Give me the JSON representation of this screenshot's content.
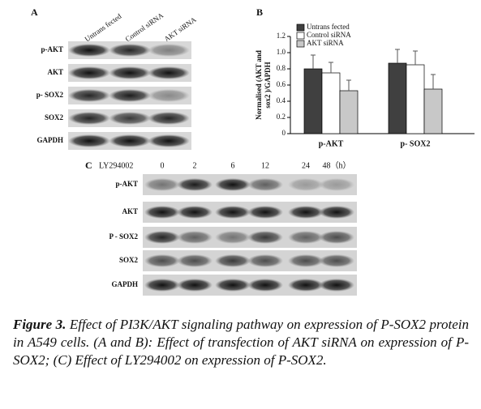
{
  "panel_a": {
    "label": "A",
    "columns": [
      "Untrans fected",
      "Control siRNA",
      "AKT siRNA"
    ],
    "rows": [
      "p-AKT",
      "AKT",
      "p- SOX2",
      "SOX2",
      "GAPDH"
    ]
  },
  "chart_data": {
    "type": "bar",
    "panel_label": "B",
    "ylabel": [
      "Normalised (AKT and",
      "sox2 )/GAPDH"
    ],
    "categories": [
      "p-AKT",
      "p- SOX2"
    ],
    "series": [
      {
        "name": "Untrans fected",
        "color": "#404040",
        "values": [
          0.8,
          0.87
        ],
        "errors": [
          0.17,
          0.17
        ]
      },
      {
        "name": "Control siRNA",
        "color": "#ffffff",
        "values": [
          0.75,
          0.85
        ],
        "errors": [
          0.13,
          0.17
        ]
      },
      {
        "name": "AKT siRNA",
        "color": "#c8c8c8",
        "values": [
          0.53,
          0.55
        ],
        "errors": [
          0.13,
          0.18
        ]
      }
    ],
    "ylim": [
      0,
      1.2
    ],
    "yticks": [
      0,
      0.2,
      0.4,
      0.6,
      0.8,
      {
        "value": 1,
        "label": "1.0"
      },
      1.2
    ],
    "legend": "top-left"
  },
  "panel_c": {
    "label": "C",
    "treatment": "LY294002",
    "times": [
      "0",
      "2",
      "6",
      "12",
      "24",
      "48（h）"
    ],
    "rows": [
      "p-AKT",
      "AKT",
      "P - SOX2",
      "SOX2",
      "GAPDH"
    ]
  },
  "caption": {
    "label": "Figure 3.",
    "text": "Effect of PI3K/AKT signaling pathway on expression of P-SOX2 protein in A549 cells. (A and B): Effect of transfection of AKT siRNA on expression of P-SOX2; (C) Effect of LY294002 on expression of P-SOX2."
  }
}
